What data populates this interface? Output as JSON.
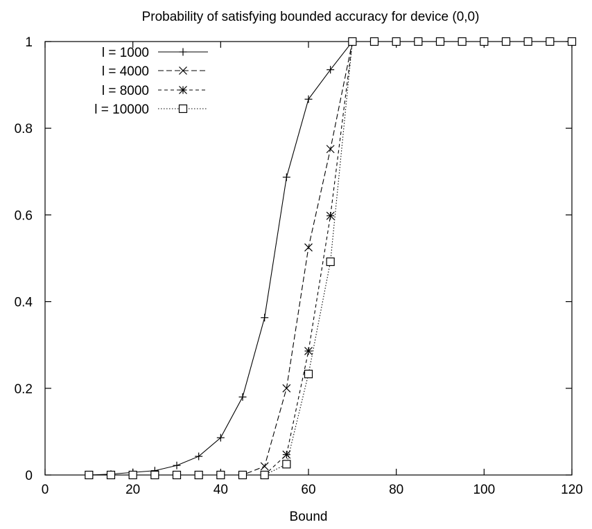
{
  "chart_data": {
    "type": "line",
    "title": "Probability of satisfying bounded accuracy for device (0,0)",
    "xlabel": "Bound",
    "ylabel": "",
    "xlim": [
      0,
      120
    ],
    "ylim": [
      0,
      1
    ],
    "xticks": [
      0,
      20,
      40,
      60,
      80,
      100,
      120
    ],
    "yticks": [
      0,
      0.2,
      0.4,
      0.6,
      0.8,
      1
    ],
    "ytick_labels": [
      "0",
      "0.2",
      "0.4",
      "0.6",
      "0.8",
      "1"
    ],
    "grid": false,
    "legend_position": "top-left",
    "x": [
      10,
      15,
      20,
      25,
      30,
      35,
      40,
      45,
      50,
      55,
      60,
      65,
      70,
      75,
      80,
      85,
      90,
      95,
      100,
      105,
      110,
      115,
      120
    ],
    "series": [
      {
        "name": "l = 1000",
        "marker": "plus",
        "dash": "solid",
        "values": [
          0,
          0.002,
          0.006,
          0.01,
          0.022,
          0.043,
          0.086,
          0.18,
          0.363,
          0.687,
          0.867,
          0.935,
          1,
          1,
          1,
          1,
          1,
          1,
          1,
          1,
          1,
          1,
          1
        ]
      },
      {
        "name": "l = 4000",
        "marker": "cross",
        "dash": "dashed",
        "values": [
          0,
          0,
          0,
          0,
          0,
          0,
          0,
          0,
          0.02,
          0.2,
          0.525,
          0.752,
          1,
          1,
          1,
          1,
          1,
          1,
          1,
          1,
          1,
          1,
          1
        ]
      },
      {
        "name": "l = 8000",
        "marker": "star",
        "dash": "short-dashed",
        "values": [
          0,
          0,
          0,
          0,
          0,
          0,
          0,
          0,
          0,
          0.047,
          0.286,
          0.598,
          1,
          1,
          1,
          1,
          1,
          1,
          1,
          1,
          1,
          1,
          1
        ]
      },
      {
        "name": "l = 10000",
        "marker": "square",
        "dash": "dotted",
        "values": [
          0,
          0,
          0,
          0,
          0,
          0,
          0,
          0,
          0,
          0.025,
          0.233,
          0.492,
          1,
          1,
          1,
          1,
          1,
          1,
          1,
          1,
          1,
          1,
          1
        ]
      }
    ]
  }
}
